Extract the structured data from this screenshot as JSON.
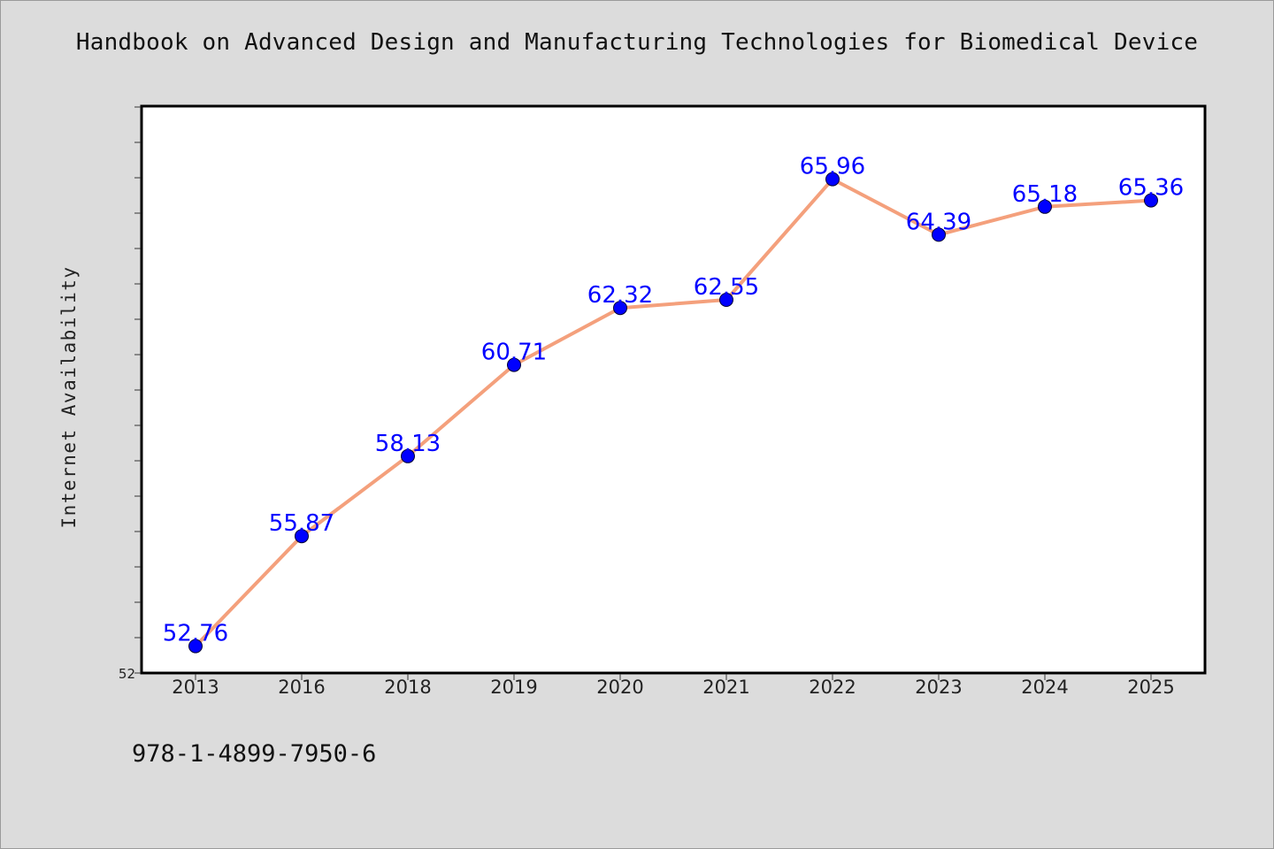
{
  "chart_data": {
    "type": "line",
    "title": "Handbook on Advanced Design and Manufacturing Technologies for Biomedical Device",
    "xlabel": "",
    "ylabel": "Internet Availability",
    "categories": [
      "2013",
      "2016",
      "2018",
      "2019",
      "2020",
      "2021",
      "2022",
      "2023",
      "2024",
      "2025"
    ],
    "series": [
      {
        "values": [
          52.76,
          55.87,
          58.13,
          60.71,
          62.32,
          62.55,
          65.96,
          64.39,
          65.18,
          65.36
        ]
      }
    ],
    "ylim": [
      52,
      68
    ],
    "y_tick_labels_shown": [
      "52"
    ],
    "y_minor_step": 1,
    "grid": false,
    "legend": "none",
    "line_color": "#f4a07c",
    "marker_color": "#0000ff",
    "label_color": "#0000ff",
    "data_labels": true
  },
  "footer": {
    "text": "978-1-4899-7950-6"
  }
}
